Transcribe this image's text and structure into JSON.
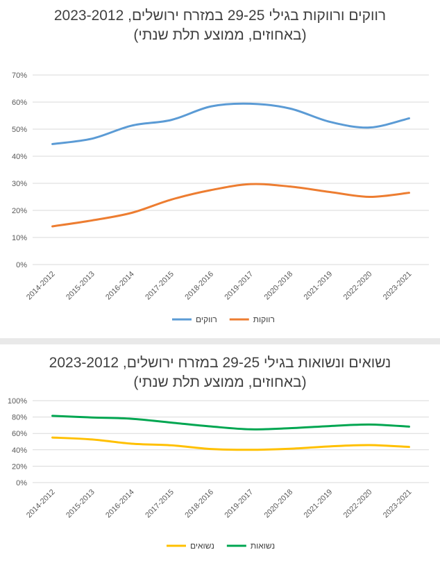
{
  "chart_data": [
    {
      "type": "line",
      "title": "רווקים ורווקות בגילי 29-25 במזרח ירושלים, 2023-2012",
      "subtitle": "(באחוזים, ממוצע תלת שנתי)",
      "categories": [
        "2014-2012",
        "2015-2013",
        "2016-2014",
        "2017-2015",
        "2018-2016",
        "2019-2017",
        "2020-2018",
        "2021-2019",
        "2022-2020",
        "2023-2021"
      ],
      "yticks": [
        "0%",
        "10%",
        "20%",
        "30%",
        "40%",
        "50%",
        "60%",
        "70%"
      ],
      "ylim": [
        0,
        70
      ],
      "grid": true,
      "legend_position": "bottom",
      "series": [
        {
          "name": "רווקים",
          "color": "#5b9bd5",
          "values": [
            44.5,
            46.5,
            51.3,
            53.4,
            58.4,
            59.4,
            57.6,
            52.7,
            50.6,
            54
          ]
        },
        {
          "name": "רווקות",
          "color": "#ed7d31",
          "values": [
            14.1,
            16.3,
            19.1,
            24,
            27.5,
            29.7,
            28.8,
            26.8,
            25,
            26.5
          ]
        }
      ]
    },
    {
      "type": "line",
      "title": "נשואים ונשואות בגילי 29-25 במזרח ירושלים, 2023-2012",
      "subtitle": "(באחוזים, ממוצע תלת שנתי)",
      "categories": [
        "2014-2012",
        "2015-2013",
        "2016-2014",
        "2017-2015",
        "2018-2016",
        "2019-2017",
        "2020-2018",
        "2021-2019",
        "2022-2020",
        "2023-2021"
      ],
      "yticks": [
        "0%",
        "20%",
        "40%",
        "60%",
        "80%",
        "100%"
      ],
      "ylim": [
        0,
        100
      ],
      "grid": true,
      "legend_position": "bottom",
      "series": [
        {
          "name": "נשואים",
          "color": "#ffc000",
          "values": [
            55,
            52.6,
            47.5,
            45.5,
            41,
            40,
            41.3,
            44.2,
            45.8,
            43.5
          ]
        },
        {
          "name": "נשואות",
          "color": "#00a651",
          "values": [
            81.5,
            79.5,
            77.9,
            73.2,
            68.5,
            65,
            66.4,
            69,
            70.9,
            68.3
          ]
        }
      ]
    }
  ]
}
